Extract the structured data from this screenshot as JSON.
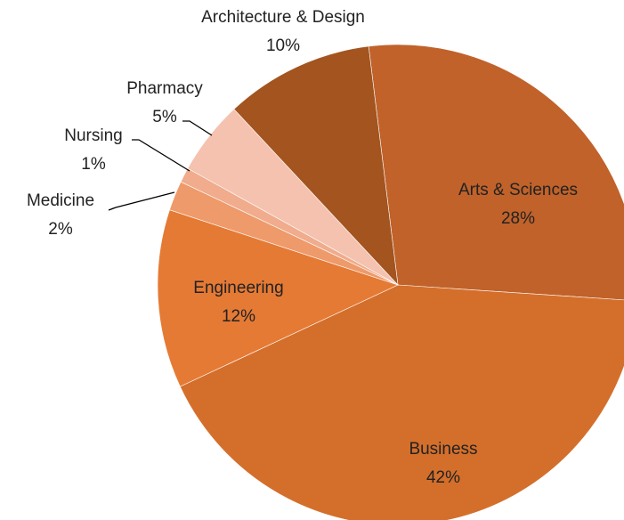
{
  "chart_data": {
    "type": "pie",
    "categories": [
      "Arts & Sciences",
      "Business",
      "Engineering",
      "Medicine",
      "Nursing",
      "Pharmacy",
      "Architecture & Design"
    ],
    "values": [
      28,
      42,
      12,
      2,
      1,
      5,
      10
    ],
    "value_labels": [
      "28%",
      "42%",
      "12%",
      "2%",
      "1%",
      "5%",
      "10%"
    ],
    "colors": [
      "#C0622A",
      "#D46F2B",
      "#E57A35",
      "#EE9A6B",
      "#F0AC8C",
      "#F4C2AE",
      "#A3541F"
    ]
  }
}
